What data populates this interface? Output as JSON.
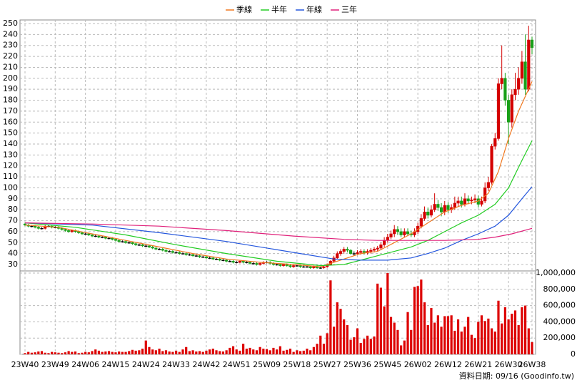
{
  "chart_data": {
    "type": "candlestick",
    "categories": [
      "23W40",
      null,
      null,
      null,
      null,
      null,
      null,
      null,
      null,
      "23W49",
      null,
      null,
      null,
      null,
      null,
      null,
      null,
      null,
      "24W06",
      null,
      null,
      null,
      null,
      null,
      null,
      null,
      null,
      "24W15",
      null,
      null,
      null,
      null,
      null,
      null,
      null,
      null,
      "24W24",
      null,
      null,
      null,
      null,
      null,
      null,
      null,
      null,
      "24W33",
      null,
      null,
      null,
      null,
      null,
      null,
      null,
      null,
      "24W42",
      null,
      null,
      null,
      null,
      null,
      null,
      null,
      null,
      "24W51",
      null,
      null,
      null,
      null,
      null,
      null,
      null,
      null,
      "25W09",
      null,
      null,
      null,
      null,
      null,
      null,
      null,
      null,
      "25W18",
      null,
      null,
      null,
      null,
      null,
      null,
      null,
      null,
      "25W27",
      null,
      null,
      null,
      null,
      null,
      null,
      null,
      null,
      "25W36",
      null,
      null,
      null,
      null,
      null,
      null,
      null,
      null,
      "25W45",
      null,
      null,
      null,
      null,
      null,
      null,
      null,
      null,
      "26W02",
      null,
      null,
      null,
      null,
      null,
      null,
      null,
      null,
      "26W12",
      null,
      null,
      null,
      null,
      null,
      null,
      null,
      null,
      "26W21",
      null,
      null,
      null,
      null,
      null,
      null,
      null,
      null,
      "26W30",
      null,
      null,
      null,
      null,
      null,
      null,
      "26W38"
    ],
    "open": [
      67,
      66,
      65,
      65,
      64,
      63,
      63,
      65,
      65,
      64,
      64,
      63,
      62,
      61,
      60,
      61,
      60,
      59,
      58,
      58,
      57,
      56,
      56,
      55,
      55,
      54,
      54,
      53,
      52,
      51,
      51,
      50,
      50,
      49,
      48,
      48,
      47,
      47,
      46,
      45,
      44,
      44,
      43,
      42,
      42,
      41,
      41,
      40,
      40,
      39,
      39,
      38,
      38,
      37,
      37,
      36,
      36,
      35,
      35,
      34,
      34,
      33,
      33,
      32,
      32,
      33,
      32,
      32,
      31,
      31,
      30,
      31,
      32,
      32,
      31,
      30,
      30,
      29,
      30,
      29,
      28,
      29,
      29,
      28,
      28,
      28,
      27,
      28,
      27,
      27,
      28,
      30,
      33,
      36,
      40,
      42,
      44,
      43,
      40,
      40,
      41,
      42,
      41,
      42,
      43,
      44,
      45,
      48,
      52,
      55,
      58,
      62,
      60,
      57,
      60,
      58,
      57,
      60,
      65,
      72,
      78,
      75,
      80,
      85,
      82,
      78,
      84,
      80,
      82,
      86,
      88,
      85,
      90,
      88,
      89,
      90,
      85,
      88,
      100,
      105,
      138,
      145,
      195,
      200,
      180,
      160,
      185,
      190,
      200,
      215,
      190,
      235
    ],
    "high": [
      68,
      67,
      66,
      66,
      65,
      64,
      66,
      66,
      66,
      65,
      65,
      64,
      63,
      62,
      62,
      62,
      61,
      60,
      59,
      59,
      58,
      57,
      57,
      56,
      56,
      55,
      55,
      54,
      53,
      52,
      52,
      51,
      51,
      50,
      49,
      49,
      48,
      48,
      47,
      46,
      45,
      45,
      44,
      43,
      43,
      42,
      42,
      41,
      41,
      40,
      40,
      39,
      39,
      38,
      38,
      37,
      37,
      36,
      36,
      35,
      35,
      34,
      34,
      33,
      34,
      34,
      33,
      33,
      32,
      32,
      32,
      33,
      33,
      33,
      32,
      31,
      31,
      31,
      31,
      30,
      30,
      30,
      30,
      29,
      29,
      29,
      29,
      29,
      28,
      29,
      31,
      34,
      38,
      42,
      44,
      46,
      46,
      44,
      42,
      43,
      44,
      44,
      44,
      45,
      46,
      47,
      50,
      55,
      58,
      61,
      66,
      65,
      63,
      63,
      63,
      61,
      63,
      68,
      76,
      83,
      82,
      84,
      95,
      89,
      86,
      88,
      87,
      85,
      92,
      92,
      92,
      95,
      93,
      92,
      94,
      93,
      92,
      105,
      110,
      140,
      150,
      200,
      230,
      205,
      185,
      190,
      205,
      210,
      225,
      240,
      248,
      238
    ],
    "low": [
      65,
      64,
      64,
      63,
      62,
      62,
      62,
      64,
      63,
      63,
      62,
      61,
      60,
      59,
      59,
      59,
      58,
      57,
      57,
      56,
      55,
      55,
      54,
      54,
      53,
      53,
      52,
      51,
      50,
      50,
      49,
      49,
      48,
      47,
      47,
      46,
      46,
      45,
      44,
      43,
      43,
      42,
      41,
      41,
      40,
      40,
      39,
      39,
      38,
      38,
      37,
      37,
      36,
      36,
      35,
      35,
      34,
      34,
      33,
      33,
      32,
      32,
      31,
      31,
      31,
      31,
      31,
      30,
      30,
      29,
      29,
      30,
      31,
      30,
      29,
      29,
      28,
      28,
      28,
      27,
      27,
      28,
      27,
      27,
      27,
      26,
      26,
      26,
      26,
      26,
      27,
      29,
      32,
      35,
      38,
      40,
      41,
      39,
      38,
      39,
      39,
      39,
      39,
      40,
      41,
      42,
      43,
      46,
      50,
      53,
      55,
      57,
      55,
      55,
      56,
      55,
      55,
      58,
      63,
      70,
      72,
      73,
      78,
      79,
      74,
      75,
      77,
      77,
      80,
      83,
      82,
      83,
      85,
      85,
      86,
      82,
      83,
      86,
      97,
      103,
      135,
      143,
      190,
      175,
      140,
      155,
      180,
      185,
      195,
      185,
      188,
      222
    ],
    "close": [
      66,
      65,
      65,
      64,
      63,
      63,
      65,
      65,
      64,
      64,
      63,
      62,
      61,
      60,
      61,
      60,
      59,
      58,
      58,
      57,
      56,
      56,
      55,
      55,
      54,
      54,
      53,
      52,
      51,
      51,
      50,
      50,
      49,
      48,
      48,
      47,
      47,
      46,
      45,
      44,
      44,
      43,
      42,
      42,
      41,
      41,
      40,
      40,
      39,
      39,
      38,
      38,
      37,
      37,
      36,
      36,
      35,
      35,
      34,
      34,
      33,
      33,
      32,
      32,
      33,
      32,
      32,
      31,
      31,
      30,
      31,
      32,
      32,
      31,
      30,
      30,
      29,
      30,
      29,
      28,
      29,
      29,
      28,
      28,
      28,
      27,
      28,
      27,
      27,
      28,
      30,
      33,
      36,
      40,
      42,
      44,
      43,
      40,
      40,
      41,
      42,
      41,
      42,
      43,
      44,
      45,
      48,
      52,
      55,
      58,
      62,
      60,
      57,
      60,
      58,
      57,
      60,
      65,
      72,
      78,
      75,
      80,
      85,
      82,
      78,
      84,
      80,
      82,
      86,
      88,
      85,
      90,
      88,
      89,
      90,
      85,
      88,
      100,
      105,
      138,
      145,
      195,
      200,
      180,
      160,
      185,
      190,
      200,
      215,
      190,
      235,
      228
    ],
    "up_color": "#d40000",
    "down_color": "#19a019",
    "flat_color": "#000000",
    "ylim": [
      30,
      250
    ],
    "yticks": [
      30,
      40,
      50,
      60,
      70,
      80,
      90,
      100,
      110,
      120,
      130,
      140,
      150,
      160,
      170,
      180,
      190,
      200,
      210,
      220,
      230,
      240,
      250
    ],
    "grid": true,
    "series": [
      {
        "name": "季線",
        "color": "#f07820",
        "x": [
          0,
          10,
          20,
          30,
          40,
          50,
          60,
          70,
          80,
          88,
          95,
          100,
          105,
          110,
          115,
          120,
          125,
          130,
          135,
          138,
          141,
          144,
          147,
          151
        ],
        "values": [
          66,
          64,
          58,
          52,
          46,
          40,
          35,
          32,
          30,
          28,
          35,
          40,
          42,
          50,
          58,
          68,
          78,
          84,
          88,
          95,
          115,
          145,
          170,
          197
        ]
      },
      {
        "name": "半年",
        "color": "#22cc22",
        "x": [
          0,
          15,
          30,
          45,
          60,
          75,
          88,
          95,
          100,
          105,
          110,
          115,
          120,
          125,
          130,
          135,
          140,
          144,
          148,
          151
        ],
        "values": [
          68,
          64,
          57,
          48,
          40,
          33,
          29,
          30,
          34,
          38,
          42,
          46,
          52,
          60,
          68,
          75,
          85,
          100,
          125,
          143
        ]
      },
      {
        "name": "年線",
        "color": "#2255dd",
        "x": [
          0,
          20,
          40,
          60,
          80,
          92,
          100,
          108,
          115,
          120,
          125,
          130,
          135,
          140,
          144,
          148,
          151
        ],
        "values": [
          68,
          66,
          59,
          51,
          41,
          35,
          34,
          34,
          36,
          40,
          45,
          52,
          58,
          65,
          75,
          90,
          101
        ]
      },
      {
        "name": "三年",
        "color": "#e0207a",
        "x": [
          0,
          20,
          40,
          60,
          80,
          95,
          105,
          115,
          125,
          135,
          140,
          145,
          151
        ],
        "values": [
          68,
          67,
          65,
          61,
          56,
          53,
          52,
          52,
          52,
          53,
          55,
          58,
          63
        ]
      }
    ],
    "volume": {
      "color": "#dd0000",
      "values": [
        15000,
        30000,
        20000,
        25000,
        35000,
        40000,
        20000,
        15000,
        30000,
        25000,
        20000,
        15000,
        25000,
        40000,
        30000,
        35000,
        15000,
        20000,
        30000,
        25000,
        40000,
        60000,
        45000,
        30000,
        35000,
        40000,
        30000,
        25000,
        35000,
        30000,
        30000,
        40000,
        55000,
        45000,
        50000,
        70000,
        170000,
        90000,
        60000,
        50000,
        70000,
        40000,
        50000,
        35000,
        30000,
        45000,
        30000,
        60000,
        90000,
        40000,
        50000,
        35000,
        40000,
        30000,
        45000,
        60000,
        70000,
        50000,
        40000,
        35000,
        50000,
        80000,
        100000,
        60000,
        45000,
        130000,
        70000,
        80000,
        60000,
        50000,
        90000,
        70000,
        65000,
        50000,
        80000,
        60000,
        100000,
        45000,
        55000,
        70000,
        30000,
        50000,
        40000,
        45000,
        70000,
        50000,
        90000,
        130000,
        230000,
        130000,
        260000,
        910000,
        340000,
        640000,
        560000,
        430000,
        360000,
        180000,
        210000,
        320000,
        140000,
        190000,
        230000,
        190000,
        220000,
        870000,
        820000,
        590000,
        1000000,
        460000,
        390000,
        300000,
        110000,
        170000,
        520000,
        300000,
        830000,
        840000,
        920000,
        640000,
        360000,
        570000,
        390000,
        480000,
        340000,
        470000,
        470000,
        480000,
        290000,
        430000,
        280000,
        340000,
        460000,
        240000,
        200000,
        400000,
        480000,
        410000,
        440000,
        320000,
        280000,
        660000,
        380000,
        580000,
        430000,
        500000,
        540000,
        360000,
        580000,
        600000,
        320000,
        150000
      ],
      "ylim": [
        0,
        1000000
      ],
      "yticks": [
        0,
        {
          "value": 200000,
          "label": "200,000"
        },
        {
          "value": 400000,
          "label": "400,000"
        },
        {
          "value": 600000,
          "label": "600,000"
        },
        {
          "value": 800000,
          "label": "800,000"
        },
        {
          "value": 1000000,
          "label": "1,000,000"
        }
      ]
    }
  },
  "footer": "資料日期: 09/16 (Goodinfo.tw)"
}
